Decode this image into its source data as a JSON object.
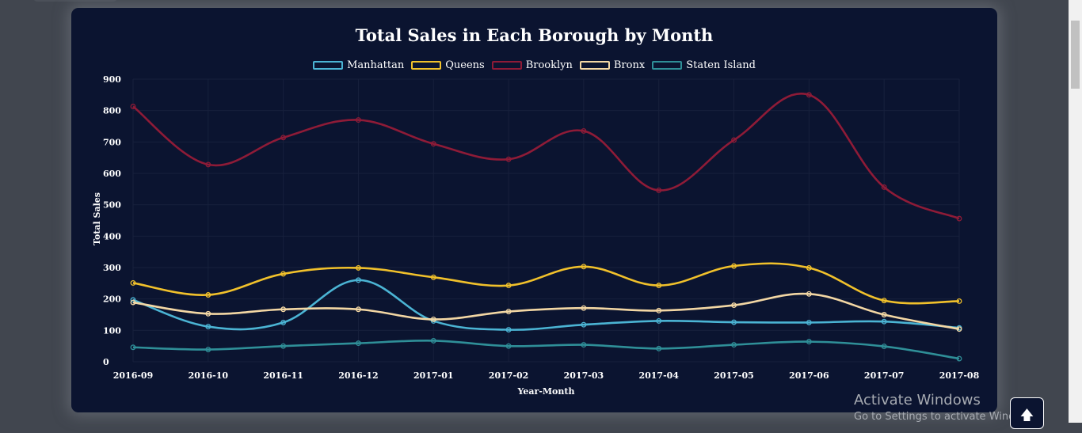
{
  "chart_data": {
    "type": "line",
    "title": "Total Sales in Each Borough by Month",
    "xlabel": "Year-Month",
    "ylabel": "Total Sales",
    "ylim": [
      0,
      900
    ],
    "yticks": [
      0,
      100,
      200,
      300,
      400,
      500,
      600,
      700,
      800,
      900
    ],
    "grid": true,
    "legend": "top",
    "categories": [
      "2016-09",
      "2016-10",
      "2016-11",
      "2016-12",
      "2017-01",
      "2017-02",
      "2017-03",
      "2017-04",
      "2017-05",
      "2017-06",
      "2017-07",
      "2017-08"
    ],
    "series": [
      {
        "name": "Manhattan",
        "color": "#4bb4d4",
        "values": [
          197,
          112,
          125,
          260,
          130,
          102,
          118,
          130,
          126,
          125,
          128,
          108
        ]
      },
      {
        "name": "Queens",
        "color": "#f1c12b",
        "values": [
          251,
          213,
          280,
          299,
          269,
          243,
          303,
          243,
          305,
          299,
          195,
          193
        ]
      },
      {
        "name": "Brooklyn",
        "color": "#8e1b37",
        "values": [
          813,
          628,
          714,
          770,
          694,
          645,
          735,
          546,
          706,
          850,
          556,
          456
        ]
      },
      {
        "name": "Bronx",
        "color": "#f3d7a4",
        "values": [
          189,
          153,
          167,
          167,
          135,
          160,
          171,
          163,
          180,
          216,
          150,
          104
        ]
      },
      {
        "name": "Staten Island",
        "color": "#2f8f98",
        "values": [
          46,
          39,
          50,
          59,
          67,
          50,
          54,
          42,
          54,
          64,
          49,
          10
        ]
      }
    ]
  },
  "watermark": {
    "title": "Activate Windows",
    "subtitle": "Go to Settings to activate Windows."
  },
  "scroll_top": {
    "icon": "arrow-up-icon",
    "glyph": "🡅"
  }
}
